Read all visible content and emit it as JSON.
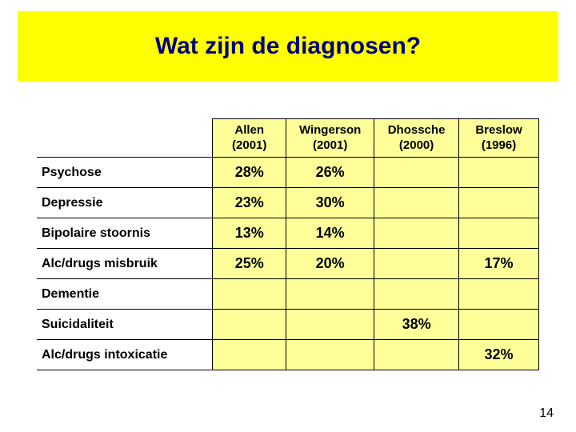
{
  "title": {
    "text": "Wat zijn de diagnosen?",
    "bg": "#ffff00",
    "color": "#000080",
    "fontsize": 30
  },
  "table": {
    "header_bg": "#ffff99",
    "row_bg": "#ffff99",
    "label_bg": "#ffffff",
    "border_color": "#000000",
    "columns": [
      {
        "line1": "Allen",
        "line2": "(2001)"
      },
      {
        "line1": "Wingerson",
        "line2": "(2001)"
      },
      {
        "line1": "Dhossche",
        "line2": "(2000)"
      },
      {
        "line1": "Breslow",
        "line2": "(1996)"
      }
    ],
    "rows": [
      {
        "label": "Psychose",
        "cells": [
          "28%",
          "26%",
          "",
          ""
        ]
      },
      {
        "label": "Depressie",
        "cells": [
          "23%",
          "30%",
          "",
          ""
        ]
      },
      {
        "label": "Bipolaire stoornis",
        "cells": [
          "13%",
          "14%",
          "",
          ""
        ]
      },
      {
        "label": "Alc/drugs misbruik",
        "cells": [
          "25%",
          "20%",
          "",
          "17%"
        ]
      },
      {
        "label": "Dementie",
        "cells": [
          "",
          "",
          "",
          ""
        ]
      },
      {
        "label": "Suicidaliteit",
        "cells": [
          "",
          "",
          "38%",
          ""
        ]
      },
      {
        "label": "Alc/drugs intoxicatie",
        "cells": [
          "",
          "",
          "",
          "32%"
        ]
      }
    ]
  },
  "page_number": "14"
}
